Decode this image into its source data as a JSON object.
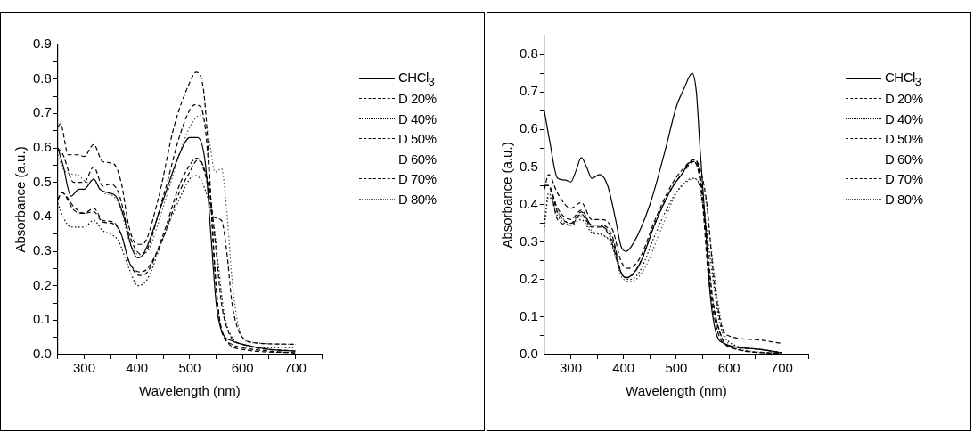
{
  "chart_data": [
    {
      "type": "line",
      "xlabel": "Wavelength (nm)",
      "ylabel": "Absorbance (a.u.)",
      "xlim": [
        250,
        750
      ],
      "ylim": [
        0,
        0.9
      ],
      "grid": false,
      "legend": "right",
      "marker": "none",
      "xticks": [
        {
          "value": 250,
          "label": null
        },
        300,
        {
          "value": 350,
          "label": null
        },
        400,
        {
          "value": 450,
          "label": null
        },
        500,
        {
          "value": 550,
          "label": null
        },
        600,
        {
          "value": 650,
          "label": null
        },
        700,
        {
          "value": 750,
          "label": null
        }
      ],
      "yticks": [
        {
          "value": 0,
          "label": "0.0"
        },
        {
          "value": 0.05,
          "label": null
        },
        0.1,
        {
          "value": 0.15,
          "label": null
        },
        0.2,
        {
          "value": 0.25,
          "label": null
        },
        0.3,
        {
          "value": 0.35,
          "label": null
        },
        0.4,
        {
          "value": 0.45,
          "label": null
        },
        0.5,
        {
          "value": 0.55,
          "label": null
        },
        0.6,
        {
          "value": 0.65,
          "label": null
        },
        0.7,
        {
          "value": 0.75,
          "label": null
        },
        0.8,
        {
          "value": 0.85,
          "label": null
        },
        0.9
      ],
      "series": [
        {
          "name": "CHCl$_{3}$",
          "color": "#000000",
          "line_style": "solid",
          "x": [
            250,
            260,
            275,
            290,
            300,
            318,
            330,
            345,
            360,
            375,
            390,
            402,
            415,
            450,
            480,
            500,
            515,
            530,
            540,
            550,
            560,
            580,
            600,
            650,
            700
          ],
          "values": [
            0.6,
            0.55,
            0.46,
            0.48,
            0.48,
            0.51,
            0.48,
            0.47,
            0.46,
            0.4,
            0.31,
            0.28,
            0.3,
            0.45,
            0.58,
            0.63,
            0.63,
            0.55,
            0.35,
            0.15,
            0.07,
            0.04,
            0.03,
            0.015,
            0.01
          ]
        },
        {
          "name": "D 20%",
          "color": "#000000",
          "line_style": "dashed",
          "x": [
            250,
            260,
            280,
            300,
            318,
            335,
            350,
            365,
            385,
            400,
            410,
            450,
            480,
            500,
            510,
            520,
            530,
            540,
            550,
            560,
            580,
            600,
            650,
            700
          ],
          "values": [
            0.6,
            0.58,
            0.5,
            0.5,
            0.545,
            0.49,
            0.495,
            0.47,
            0.35,
            0.3,
            0.29,
            0.46,
            0.63,
            0.71,
            0.725,
            0.72,
            0.65,
            0.45,
            0.2,
            0.07,
            0.03,
            0.02,
            0.01,
            0.005
          ]
        },
        {
          "name": "D 40%",
          "color": "#000000",
          "line_style": "dotted",
          "x": [
            250,
            260,
            275,
            300,
            318,
            335,
            350,
            365,
            385,
            402,
            420,
            450,
            480,
            500,
            510,
            520,
            535,
            545,
            555,
            565,
            580,
            600,
            650,
            700
          ],
          "values": [
            0.44,
            0.4,
            0.37,
            0.37,
            0.39,
            0.36,
            0.35,
            0.33,
            0.25,
            0.2,
            0.22,
            0.34,
            0.45,
            0.51,
            0.52,
            0.51,
            0.45,
            0.38,
            0.25,
            0.12,
            0.05,
            0.03,
            0.02,
            0.02
          ]
        },
        {
          "name": "D 50%",
          "color": "#000000",
          "line_style": "dashed",
          "x": [
            250,
            255,
            270,
            290,
            300,
            318,
            335,
            355,
            370,
            385,
            400,
            410,
            440,
            470,
            500,
            512,
            525,
            535,
            545,
            555,
            570,
            600,
            700
          ],
          "values": [
            0.66,
            0.67,
            0.58,
            0.58,
            0.575,
            0.61,
            0.56,
            0.555,
            0.5,
            0.37,
            0.32,
            0.32,
            0.45,
            0.66,
            0.79,
            0.82,
            0.78,
            0.6,
            0.3,
            0.12,
            0.04,
            0.015,
            0.005
          ]
        },
        {
          "name": "D 60%",
          "color": "#000000",
          "line_style": "dashed",
          "x": [
            250,
            258,
            280,
            300,
            318,
            335,
            355,
            370,
            385,
            405,
            420,
            450,
            480,
            500,
            512,
            525,
            540,
            550,
            560,
            575,
            600,
            700
          ],
          "values": [
            0.45,
            0.47,
            0.43,
            0.41,
            0.425,
            0.39,
            0.385,
            0.35,
            0.27,
            0.23,
            0.24,
            0.35,
            0.49,
            0.55,
            0.57,
            0.55,
            0.45,
            0.3,
            0.15,
            0.06,
            0.03,
            0.01
          ]
        },
        {
          "name": "D 70%",
          "color": "#000000",
          "line_style": "dashed",
          "x": [
            250,
            258,
            280,
            300,
            318,
            335,
            355,
            370,
            385,
            405,
            420,
            450,
            480,
            500,
            515,
            530,
            545,
            560,
            570,
            580,
            590,
            600,
            620,
            700
          ],
          "values": [
            0.45,
            0.47,
            0.42,
            0.41,
            0.415,
            0.385,
            0.38,
            0.35,
            0.27,
            0.24,
            0.25,
            0.34,
            0.47,
            0.53,
            0.565,
            0.52,
            0.4,
            0.39,
            0.3,
            0.15,
            0.08,
            0.05,
            0.035,
            0.03
          ]
        },
        {
          "name": "D 80%",
          "color": "#555555",
          "line_style": "dotted",
          "x": [
            250,
            260,
            275,
            290,
            305,
            318,
            335,
            355,
            370,
            385,
            405,
            420,
            450,
            480,
            500,
            520,
            535,
            548,
            560,
            570,
            580,
            590,
            600,
            620,
            700
          ],
          "values": [
            0.58,
            0.54,
            0.525,
            0.52,
            0.5,
            0.505,
            0.47,
            0.46,
            0.42,
            0.33,
            0.29,
            0.3,
            0.43,
            0.58,
            0.66,
            0.695,
            0.64,
            0.53,
            0.54,
            0.42,
            0.22,
            0.1,
            0.05,
            0.035,
            0.03
          ]
        }
      ]
    },
    {
      "type": "line",
      "xlabel": "Wavelength (nm)",
      "ylabel": "Absorbance (a.u.)",
      "xlim": [
        250,
        750
      ],
      "ylim": [
        0,
        0.85
      ],
      "grid": false,
      "legend": "right",
      "marker": "none",
      "xticks": [
        {
          "value": 250,
          "label": null
        },
        300,
        {
          "value": 350,
          "label": null
        },
        400,
        {
          "value": 450,
          "label": null
        },
        500,
        {
          "value": 550,
          "label": null
        },
        600,
        {
          "value": 650,
          "label": null
        },
        700,
        {
          "value": 750,
          "label": null
        }
      ],
      "yticks": [
        {
          "value": 0,
          "label": "0.0"
        },
        {
          "value": 0.05,
          "label": null
        },
        0.1,
        {
          "value": 0.15,
          "label": null
        },
        0.2,
        {
          "value": 0.25,
          "label": null
        },
        0.3,
        {
          "value": 0.35,
          "label": null
        },
        0.4,
        {
          "value": 0.45,
          "label": null
        },
        0.5,
        {
          "value": 0.55,
          "label": null
        },
        0.6,
        {
          "value": 0.65,
          "label": null
        },
        0.7,
        {
          "value": 0.75,
          "label": null
        },
        0.8
      ],
      "series": [
        {
          "name": "CHCl$_{3}$",
          "color": "#000000",
          "line_style": "solid",
          "x": [
            250,
            260,
            275,
            290,
            300,
            310,
            320,
            330,
            340,
            355,
            370,
            385,
            395,
            405,
            420,
            450,
            480,
            500,
            515,
            530,
            538,
            545,
            555,
            565,
            575,
            590,
            650,
            700
          ],
          "values": [
            0.65,
            0.57,
            0.47,
            0.465,
            0.46,
            0.49,
            0.525,
            0.5,
            0.47,
            0.48,
            0.45,
            0.36,
            0.29,
            0.275,
            0.3,
            0.4,
            0.55,
            0.66,
            0.71,
            0.75,
            0.7,
            0.55,
            0.35,
            0.15,
            0.06,
            0.03,
            0.015,
            0.005
          ]
        },
        {
          "name": "D 20%",
          "color": "#000000",
          "line_style": "dashed",
          "x": [
            250,
            258,
            275,
            300,
            320,
            340,
            355,
            375,
            395,
            405,
            430,
            460,
            490,
            510,
            530,
            540,
            550,
            560,
            575,
            590,
            650,
            700
          ],
          "values": [
            0.45,
            0.45,
            0.38,
            0.35,
            0.38,
            0.345,
            0.345,
            0.31,
            0.22,
            0.205,
            0.24,
            0.35,
            0.44,
            0.48,
            0.515,
            0.5,
            0.4,
            0.22,
            0.08,
            0.03,
            0.015,
            0.005
          ]
        },
        {
          "name": "D 40%",
          "color": "#000000",
          "line_style": "dotted",
          "x": [
            250,
            258,
            275,
            300,
            320,
            340,
            355,
            375,
            395,
            410,
            430,
            460,
            490,
            510,
            530,
            540,
            550,
            565,
            580,
            595,
            650,
            700
          ],
          "values": [
            0.35,
            0.43,
            0.37,
            0.345,
            0.36,
            0.325,
            0.32,
            0.3,
            0.22,
            0.2,
            0.22,
            0.32,
            0.41,
            0.45,
            0.47,
            0.465,
            0.4,
            0.25,
            0.1,
            0.04,
            0.015,
            0.005
          ]
        },
        {
          "name": "D 50%",
          "color": "#000000",
          "line_style": "dashed",
          "x": [
            250,
            258,
            275,
            300,
            320,
            340,
            360,
            380,
            395,
            405,
            430,
            460,
            490,
            510,
            532,
            542,
            552,
            565,
            580,
            600,
            700
          ],
          "values": [
            0.45,
            0.45,
            0.36,
            0.345,
            0.375,
            0.34,
            0.34,
            0.3,
            0.22,
            0.205,
            0.24,
            0.35,
            0.44,
            0.48,
            0.52,
            0.5,
            0.38,
            0.18,
            0.07,
            0.02,
            0.003
          ]
        },
        {
          "name": "D 60%",
          "color": "#000000",
          "line_style": "dashed",
          "x": [
            250,
            258,
            275,
            300,
            320,
            340,
            360,
            380,
            395,
            408,
            430,
            460,
            490,
            510,
            535,
            545,
            555,
            568,
            585,
            600,
            700
          ],
          "values": [
            0.45,
            0.45,
            0.39,
            0.36,
            0.385,
            0.345,
            0.345,
            0.31,
            0.22,
            0.205,
            0.24,
            0.35,
            0.44,
            0.48,
            0.515,
            0.48,
            0.36,
            0.16,
            0.05,
            0.02,
            0.003
          ]
        },
        {
          "name": "D 70%",
          "color": "#000000",
          "line_style": "dashed",
          "x": [
            250,
            258,
            275,
            300,
            320,
            340,
            360,
            380,
            395,
            408,
            430,
            460,
            490,
            510,
            535,
            548,
            558,
            570,
            585,
            600,
            650,
            700
          ],
          "values": [
            0.44,
            0.48,
            0.43,
            0.39,
            0.405,
            0.36,
            0.36,
            0.33,
            0.25,
            0.23,
            0.255,
            0.36,
            0.45,
            0.49,
            0.52,
            0.48,
            0.4,
            0.22,
            0.08,
            0.05,
            0.04,
            0.03
          ]
        },
        {
          "name": "D 80%",
          "color": "#555555",
          "line_style": "dotted",
          "x": [
            250,
            258,
            275,
            300,
            320,
            340,
            360,
            380,
            395,
            415,
            440,
            470,
            500,
            520,
            535,
            545,
            555,
            565,
            578,
            590,
            605,
            700
          ],
          "values": [
            0.33,
            0.42,
            0.38,
            0.35,
            0.37,
            0.33,
            0.32,
            0.29,
            0.21,
            0.195,
            0.23,
            0.33,
            0.43,
            0.46,
            0.47,
            0.45,
            0.42,
            0.3,
            0.15,
            0.06,
            0.02,
            0.005
          ]
        }
      ]
    }
  ]
}
